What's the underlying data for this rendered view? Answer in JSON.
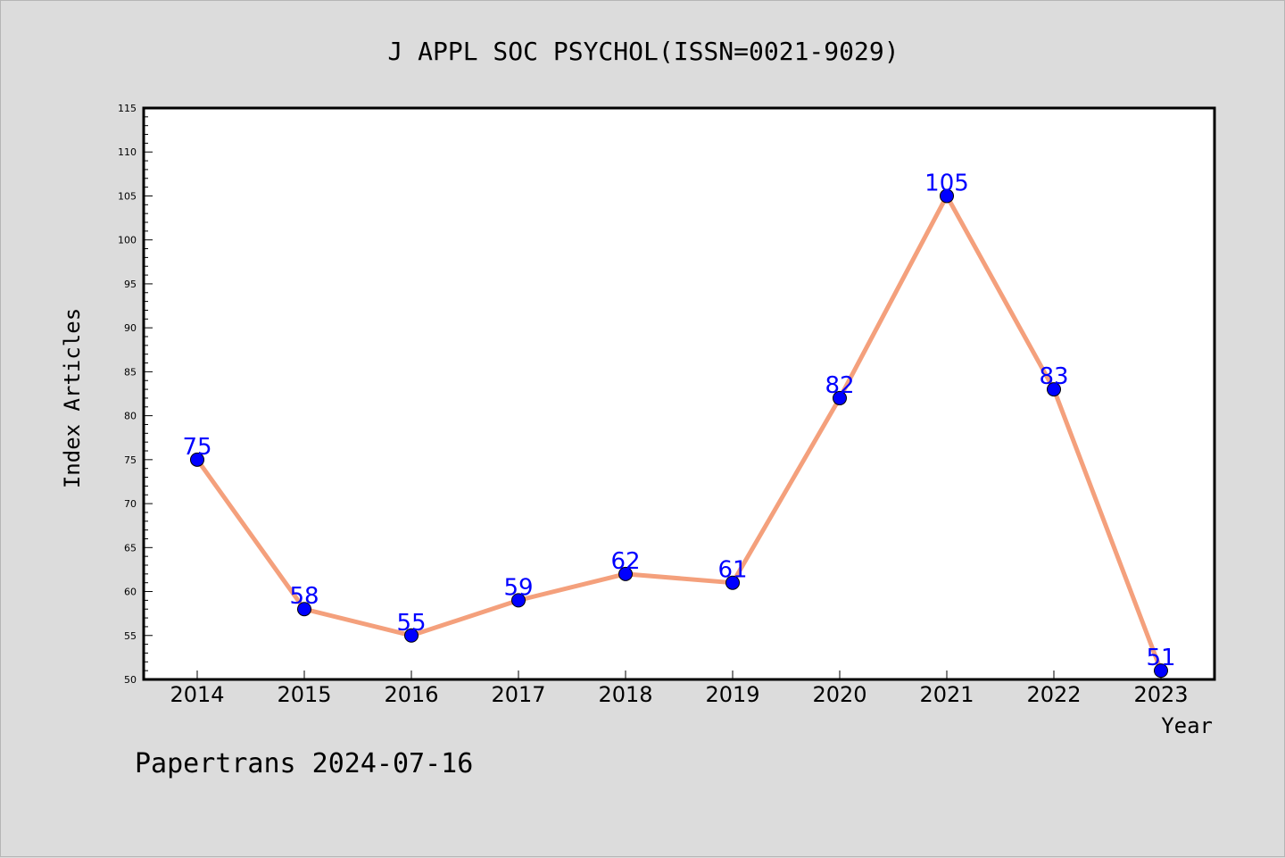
{
  "chart_data": {
    "type": "line",
    "title": "J APPL SOC PSYCHOL(ISSN=0021-9029)",
    "xlabel": "Year",
    "ylabel": "Index Articles",
    "categories": [
      "2014",
      "2015",
      "2016",
      "2017",
      "2018",
      "2019",
      "2020",
      "2021",
      "2022",
      "2023"
    ],
    "series": [
      {
        "values": [
          75,
          58,
          55,
          59,
          62,
          61,
          82,
          105,
          83,
          51
        ]
      }
    ],
    "data_labels": [
      "75",
      "58",
      "55",
      "59",
      "62",
      "61",
      "82",
      "105",
      "83",
      "51"
    ],
    "ylim": [
      50,
      115
    ],
    "yticks": [
      "50",
      "55",
      "60",
      "65",
      "70",
      "75",
      "80",
      "85",
      "90",
      "95",
      "100",
      "105",
      "110",
      "115"
    ],
    "grid": false,
    "colors": {
      "line": "#f4a07c",
      "marker": "#0000ff",
      "label": "#0000ff"
    }
  },
  "footer": "Papertrans 2024-07-16"
}
